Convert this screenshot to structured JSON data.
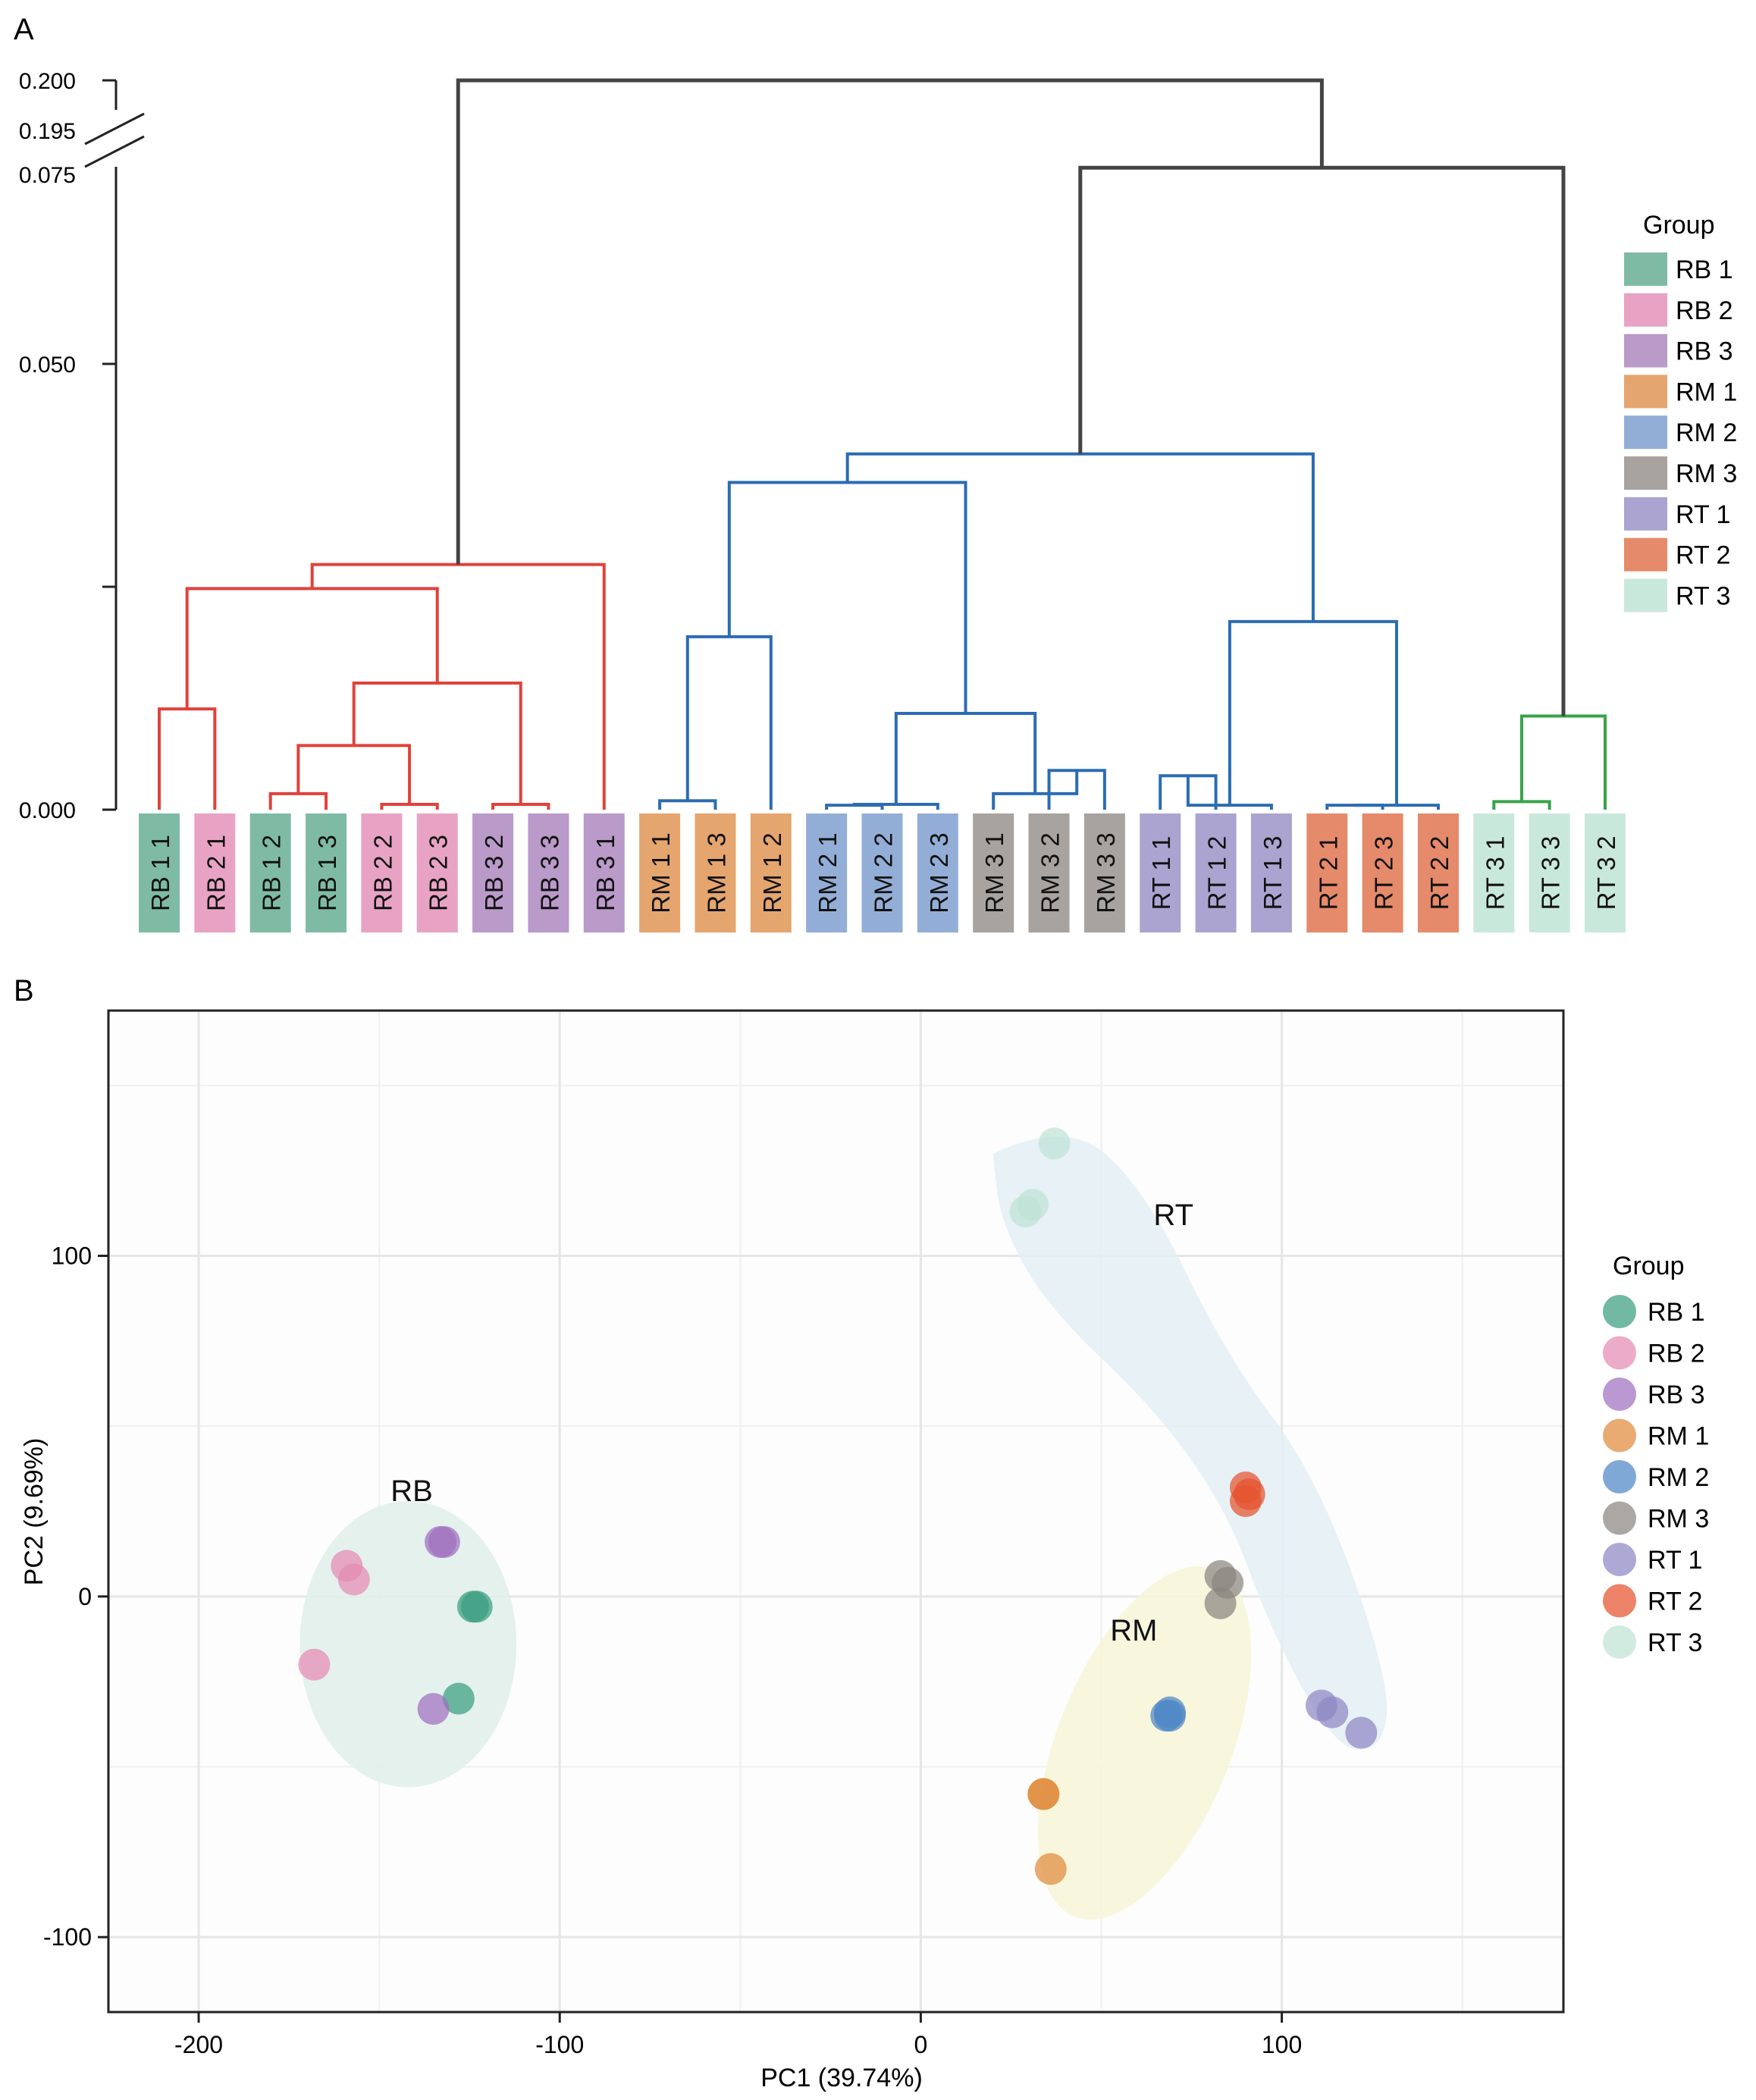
{
  "chart_data": [
    {
      "panel_label": "A",
      "type": "dendrogram",
      "y_ticks": [
        {
          "value": 0.0,
          "label": "0.000"
        },
        {
          "value": 0.025,
          "label": ""
        },
        {
          "value": 0.05,
          "label": "0.050"
        },
        {
          "value": 0.075,
          "label": "0.075"
        },
        {
          "value": 0.195,
          "label": "0.195"
        },
        {
          "value": 0.2,
          "label": "0.200"
        }
      ],
      "axis_break": [
        0.075,
        0.195
      ],
      "ylim": [
        0,
        0.2
      ],
      "leaves": [
        {
          "label": "RB 1 1",
          "group": "RB 1"
        },
        {
          "label": "RB 2 1",
          "group": "RB 2"
        },
        {
          "label": "RB 1 2",
          "group": "RB 1"
        },
        {
          "label": "RB 1 3",
          "group": "RB 1"
        },
        {
          "label": "RB 2 2",
          "group": "RB 2"
        },
        {
          "label": "RB 2 3",
          "group": "RB 2"
        },
        {
          "label": "RB 3 2",
          "group": "RB 3"
        },
        {
          "label": "RB 3 3",
          "group": "RB 3"
        },
        {
          "label": "RB 3 1",
          "group": "RB 3"
        },
        {
          "label": "RM 1 1",
          "group": "RM 1"
        },
        {
          "label": "RM 1 3",
          "group": "RM 1"
        },
        {
          "label": "RM 1 2",
          "group": "RM 1"
        },
        {
          "label": "RM 2 1",
          "group": "RM 2"
        },
        {
          "label": "RM 2 2",
          "group": "RM 2"
        },
        {
          "label": "RM 2 3",
          "group": "RM 2"
        },
        {
          "label": "RM 3 1",
          "group": "RM 3"
        },
        {
          "label": "RM 3 2",
          "group": "RM 3"
        },
        {
          "label": "RM 3 3",
          "group": "RM 3"
        },
        {
          "label": "RT 1 1",
          "group": "RT 1"
        },
        {
          "label": "RT 1 2",
          "group": "RT 1"
        },
        {
          "label": "RT 1 3",
          "group": "RT 1"
        },
        {
          "label": "RT 2 1",
          "group": "RT 2"
        },
        {
          "label": "RT 2 3",
          "group": "RT 2"
        },
        {
          "label": "RT 2 2",
          "group": "RT 2"
        },
        {
          "label": "RT 3 1",
          "group": "RT 3"
        },
        {
          "label": "RT 3 3",
          "group": "RT 3"
        },
        {
          "label": "RT 3 2",
          "group": "RT 3"
        }
      ],
      "merges": [
        {
          "a": 2,
          "b": 3,
          "height": 0.0018,
          "color": "red"
        },
        {
          "a": 4,
          "b": 5,
          "height": 0.0006,
          "color": "red"
        },
        {
          "a": 6,
          "b": 7,
          "height": 0.0006,
          "color": "red"
        },
        {
          "a": 0,
          "b": 1,
          "height": 0.0113,
          "color": "red"
        },
        {
          "a": -1,
          "b": -2,
          "height": 0.0072,
          "color": "red"
        },
        {
          "a": -5,
          "b": -3,
          "height": 0.0142,
          "color": "red"
        },
        {
          "a": -4,
          "b": -6,
          "height": 0.0248,
          "color": "red"
        },
        {
          "a": -7,
          "b": 8,
          "height": 0.0275,
          "color": "red"
        },
        {
          "a": 9,
          "b": 10,
          "height": 0.001,
          "color": "blue"
        },
        {
          "a": -9,
          "b": 11,
          "height": 0.0194,
          "color": "blue"
        },
        {
          "a": 12,
          "b": 13,
          "height": 0.0005,
          "color": "blue"
        },
        {
          "a": -11,
          "b": 14,
          "height": 0.0006,
          "color": "blue"
        },
        {
          "a": 16,
          "b": 17,
          "height": 0.0044,
          "color": "blue"
        },
        {
          "a": 15,
          "b": -13,
          "height": 0.0018,
          "color": "blue"
        },
        {
          "a": -12,
          "b": -14,
          "height": 0.0108,
          "color": "blue"
        },
        {
          "a": -10,
          "b": -15,
          "height": 0.0367,
          "color": "blue"
        },
        {
          "a": 18,
          "b": 19,
          "height": 0.0038,
          "color": "blue"
        },
        {
          "a": -17,
          "b": 20,
          "height": 0.0005,
          "color": "blue"
        },
        {
          "a": 21,
          "b": 22,
          "height": 0.0005,
          "color": "blue"
        },
        {
          "a": -19,
          "b": 23,
          "height": 0.0005,
          "color": "blue"
        },
        {
          "a": -18,
          "b": -20,
          "height": 0.0211,
          "color": "blue"
        },
        {
          "a": -16,
          "b": -21,
          "height": 0.0399,
          "color": "blue"
        },
        {
          "a": 24,
          "b": 25,
          "height": 0.0009,
          "color": "green"
        },
        {
          "a": -23,
          "b": 26,
          "height": 0.0105,
          "color": "green"
        },
        {
          "a": -22,
          "b": -24,
          "height": 0.072,
          "color": "dark"
        },
        {
          "a": -8,
          "b": -25,
          "height": 0.2,
          "color": "dark"
        }
      ],
      "legend": {
        "title": "Group",
        "items": [
          "RB 1",
          "RB 2",
          "RB 3",
          "RM 1",
          "RM 2",
          "RM 3",
          "RT 1",
          "RT 2",
          "RT 3"
        ]
      }
    },
    {
      "panel_label": "B",
      "type": "scatter",
      "xlabel": "PC1 (39.74%)",
      "ylabel": "PC2 (9.69%)",
      "xlim": [
        -225,
        178
      ],
      "ylim": [
        -122,
        172
      ],
      "x_ticks": [
        -200,
        -100,
        0,
        100
      ],
      "x_tick_labels": [
        "-200",
        "-100",
        "0",
        "100"
      ],
      "y_ticks": [
        -100,
        0,
        100
      ],
      "y_tick_labels": [
        "-100",
        "0",
        "100"
      ],
      "x_minor_grid": [
        -150,
        -50,
        50,
        150
      ],
      "y_minor_grid": [
        -50,
        50,
        150
      ],
      "points": [
        {
          "group": "RB 1",
          "x": -124,
          "y": -3
        },
        {
          "group": "RB 1",
          "x": -123,
          "y": -3
        },
        {
          "group": "RB 1",
          "x": -128,
          "y": -30
        },
        {
          "group": "RB 2",
          "x": -159,
          "y": 9
        },
        {
          "group": "RB 2",
          "x": -157,
          "y": 5
        },
        {
          "group": "RB 2",
          "x": -168,
          "y": -20
        },
        {
          "group": "RB 3",
          "x": -133,
          "y": 16
        },
        {
          "group": "RB 3",
          "x": -132,
          "y": 16
        },
        {
          "group": "RB 3",
          "x": -135,
          "y": -33
        },
        {
          "group": "RM 1",
          "x": 34,
          "y": -58
        },
        {
          "group": "RM 1",
          "x": 34,
          "y": -58
        },
        {
          "group": "RM 1",
          "x": 36,
          "y": -80
        },
        {
          "group": "RM 2",
          "x": 69,
          "y": -34
        },
        {
          "group": "RM 2",
          "x": 69,
          "y": -35
        },
        {
          "group": "RM 2",
          "x": 68,
          "y": -35
        },
        {
          "group": "RM 3",
          "x": 83,
          "y": 6
        },
        {
          "group": "RM 3",
          "x": 85,
          "y": 4
        },
        {
          "group": "RM 3",
          "x": 83,
          "y": -2
        },
        {
          "group": "RT 1",
          "x": 111,
          "y": -32
        },
        {
          "group": "RT 1",
          "x": 114,
          "y": -34
        },
        {
          "group": "RT 1",
          "x": 122,
          "y": -40
        },
        {
          "group": "RT 2",
          "x": 90,
          "y": 32
        },
        {
          "group": "RT 2",
          "x": 91,
          "y": 30
        },
        {
          "group": "RT 2",
          "x": 90,
          "y": 28
        },
        {
          "group": "RT 3",
          "x": 37,
          "y": 133
        },
        {
          "group": "RT 3",
          "x": 31,
          "y": 115
        },
        {
          "group": "RT 3",
          "x": 29,
          "y": 113
        }
      ],
      "clusters": [
        {
          "label": "RB",
          "label_x": -141,
          "label_y": 28,
          "fill": "#dfeeea",
          "shape": "ellipse",
          "cx": -142,
          "cy": -14,
          "rx": 30,
          "ry": 42
        },
        {
          "label": "RM",
          "label_x": 59,
          "label_y": -13,
          "fill": "#f7f6d7",
          "shape": "ellipse",
          "cx": 62,
          "cy": -43,
          "rx": 24,
          "ry": 55,
          "rot": 22
        },
        {
          "label": "RT",
          "label_x": 70,
          "label_y": 109,
          "fill": "#e3eff4",
          "shape": "path"
        }
      ],
      "legend": {
        "title": "Group",
        "items": [
          "RB 1",
          "RB 2",
          "RB 3",
          "RM 1",
          "RM 2",
          "RM 3",
          "RT 1",
          "RT 2",
          "RT 3"
        ]
      }
    }
  ],
  "group_colors": {
    "RB 1": "#7fbba4",
    "RB 2": "#e8a3c4",
    "RB 3": "#b99ac9",
    "RM 1": "#e5a56f",
    "RM 2": "#93aed6",
    "RM 3": "#a8a39f",
    "RT 1": "#aba4d0",
    "RT 2": "#e58a6a",
    "RT 3": "#c9e8dc"
  },
  "point_colors": {
    "RB 1": "#3a9e7f",
    "RB 2": "#e58bb3",
    "RB 3": "#a070bf",
    "RM 1": "#e18b3c",
    "RM 2": "#4f86c6",
    "RM 3": "#8b8580",
    "RT 1": "#8f86c4",
    "RT 2": "#e4532e",
    "RT 3": "#bfe3d6"
  },
  "branch_colors": {
    "red": "#e0423a",
    "blue": "#2b6cb3",
    "green": "#37a34a",
    "dark": "#444444"
  }
}
